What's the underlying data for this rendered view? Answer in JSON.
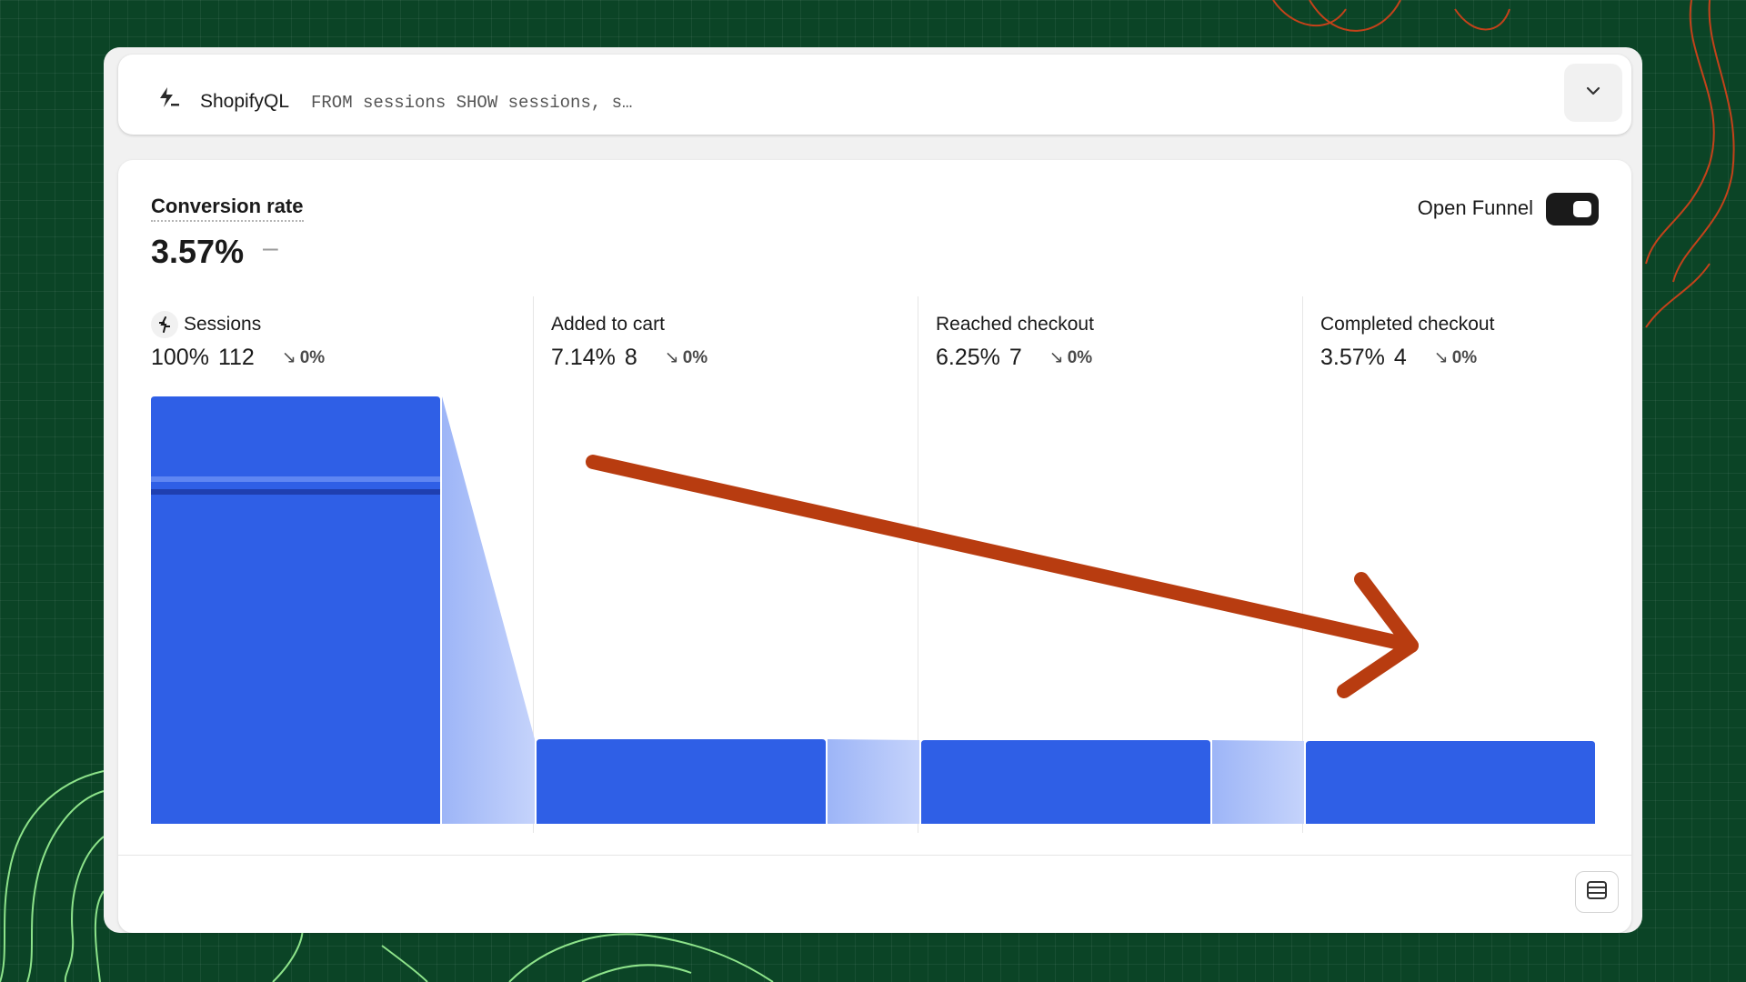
{
  "query_bar": {
    "brand": "ShopifyQL",
    "query": "FROM sessions SHOW sessions, s…"
  },
  "metric": {
    "label": "Conversion rate",
    "value": "3.57%",
    "change": "–"
  },
  "open_funnel": {
    "label": "Open Funnel",
    "enabled": true
  },
  "stages": [
    {
      "name": "Sessions",
      "percent": "100%",
      "count": "112",
      "change": "0%"
    },
    {
      "name": "Added to cart",
      "percent": "7.14%",
      "count": "8",
      "change": "0%"
    },
    {
      "name": "Reached checkout",
      "percent": "6.25%",
      "count": "7",
      "change": "0%"
    },
    {
      "name": "Completed checkout",
      "percent": "3.57%",
      "count": "4",
      "change": "0%"
    }
  ],
  "colors": {
    "bar": "#2f5fe6",
    "connector": "#9db5f7",
    "annotation_arrow": "#b83c10",
    "background": "#0b4426"
  },
  "chart_data": {
    "type": "bar",
    "categories": [
      "Sessions",
      "Added to cart",
      "Reached checkout",
      "Completed checkout"
    ],
    "values": [
      112,
      8,
      7,
      4
    ],
    "percentages": [
      100,
      7.14,
      6.25,
      3.57
    ],
    "note": "funnel chart; bar heights shown on an uneven (non-linear) display scale"
  }
}
